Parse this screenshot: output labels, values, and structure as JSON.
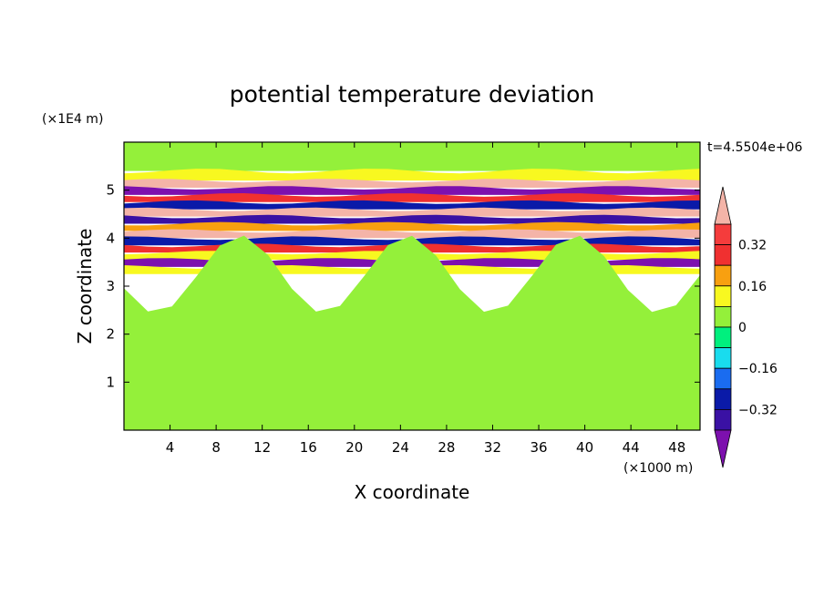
{
  "chart_data": {
    "type": "heatmap",
    "title": "potential temperature deviation",
    "xlabel": "X coordinate",
    "ylabel": "Z coordinate",
    "x_unit": "(×1000 m)",
    "y_unit": "(×1E4 m)",
    "time_label": "t=4.5504e+06",
    "xlim": [
      0,
      50
    ],
    "ylim": [
      0,
      6
    ],
    "x_ticks": [
      "4",
      "8",
      "12",
      "16",
      "20",
      "24",
      "28",
      "32",
      "36",
      "40",
      "44",
      "48"
    ],
    "y_ticks": [
      "1",
      "2",
      "3",
      "4",
      "5"
    ],
    "colorbar": {
      "labels": [
        "0.32",
        "0.16",
        "0",
        "-0.16",
        "-0.32"
      ],
      "levels": [
        -0.4,
        -0.32,
        -0.24,
        -0.16,
        -0.08,
        0,
        0.08,
        0.16,
        0.24,
        0.32,
        0.4
      ],
      "colors": [
        "#7d10ae",
        "#3a11a4",
        "#0a1aa8",
        "#1a6cf0",
        "#19dcee",
        "#00f07e",
        "#94f03a",
        "#f8f820",
        "#f8a010",
        "#f03030",
        "#f53c3c",
        "#f4b4a8"
      ]
    },
    "layers": [
      {
        "z_top": 6.0,
        "z_bottom": 5.4,
        "value": 0.02
      },
      {
        "z_top": 5.4,
        "z_bottom": 5.2,
        "value": 0.1
      },
      {
        "z_top": 5.2,
        "z_bottom": 5.05,
        "value": 0.45
      },
      {
        "z_top": 5.05,
        "z_bottom": 4.9,
        "value": -0.45
      },
      {
        "z_top": 4.9,
        "z_bottom": 4.75,
        "value": 0.25
      },
      {
        "z_top": 4.75,
        "z_bottom": 4.6,
        "value": -0.3
      },
      {
        "z_top": 4.6,
        "z_bottom": 4.45,
        "value": 0.45
      },
      {
        "z_top": 4.45,
        "z_bottom": 4.3,
        "value": -0.38
      },
      {
        "z_top": 4.3,
        "z_bottom": 4.15,
        "value": 0.2
      },
      {
        "z_top": 4.15,
        "z_bottom": 4.0,
        "value": 0.45
      },
      {
        "z_top": 4.0,
        "z_bottom": 3.85,
        "value": -0.25
      },
      {
        "z_top": 3.85,
        "z_bottom": 3.7,
        "value": 0.3
      },
      {
        "z_top": 3.7,
        "z_bottom": 3.55,
        "value": 0.1
      },
      {
        "z_top": 3.55,
        "z_bottom": 3.4,
        "value": -0.45
      },
      {
        "z_top": 3.4,
        "z_bottom": 3.25,
        "value": 0.15
      },
      {
        "z_top": 3.25,
        "z_bottom": 0.0,
        "value": 0.04
      }
    ]
  }
}
